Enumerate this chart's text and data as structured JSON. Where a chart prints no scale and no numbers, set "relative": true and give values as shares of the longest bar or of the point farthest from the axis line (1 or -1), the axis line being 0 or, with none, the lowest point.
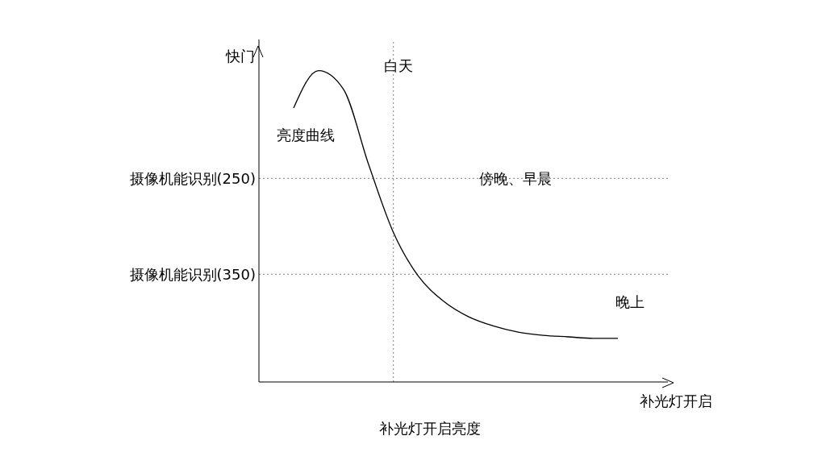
{
  "chart_data": {
    "type": "line",
    "relative": true,
    "ylabel": "快门",
    "xlabel": "补光灯开启",
    "categories": [
      null,
      null,
      null,
      null,
      null,
      null,
      null,
      null,
      null,
      null,
      null,
      null,
      null,
      null
    ],
    "series": [
      {
        "color": "#000000",
        "values": [
          0.88,
          1.0,
          0.94,
          0.7,
          0.48,
          0.34,
          0.26,
          0.21,
          0.18,
          0.16,
          0.15,
          0.145,
          0.14,
          0.14
        ]
      }
    ],
    "marker": "none",
    "line_style": "solid",
    "grid": false,
    "legend": false,
    "ref_lines": [
      {
        "axis": "y",
        "value": 0.654,
        "label": "摄像机能识别(250)",
        "color": "#808080",
        "line_style": "dotted"
      },
      {
        "axis": "y",
        "value": 0.346,
        "label": "摄像机能识别(350)",
        "color": "#808080",
        "line_style": "dotted"
      }
    ],
    "annotations": [
      "白天",
      "亮度曲线",
      "傍晚、早晨",
      "晚上",
      "补光灯开启亮度"
    ]
  }
}
